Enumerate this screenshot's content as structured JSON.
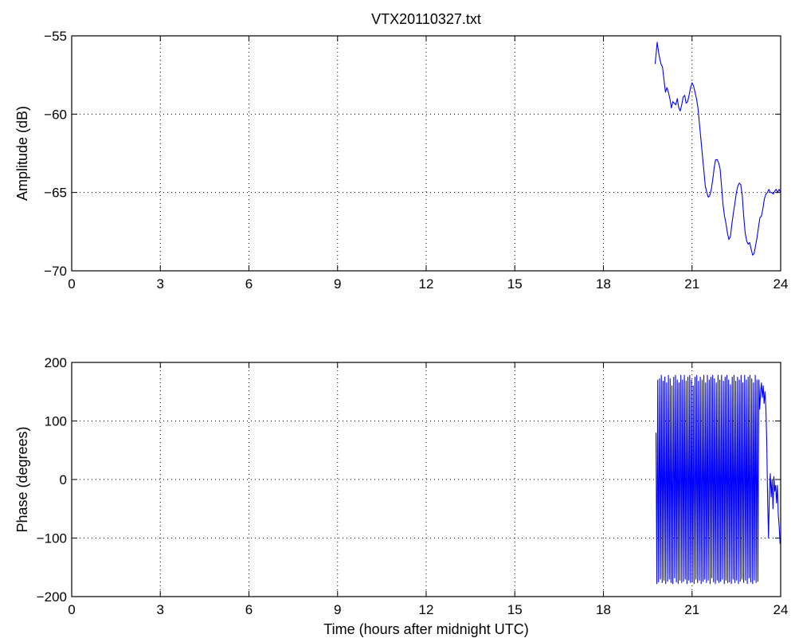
{
  "chart_data": [
    {
      "type": "line",
      "title": "VTX20110327.txt",
      "xlabel": "",
      "ylabel": "Amplitude (dB)",
      "xlim": [
        0,
        24
      ],
      "ylim": [
        -70,
        -55
      ],
      "xticks": [
        "0",
        "3",
        "6",
        "9",
        "12",
        "15",
        "18",
        "21",
        "24"
      ],
      "yticks": [
        "-70",
        "-65",
        "-60",
        "-55"
      ],
      "grid": true,
      "line_color": "#0000ff",
      "series": [
        {
          "x": [
            19.75,
            19.82,
            19.88,
            19.95,
            20.0,
            20.05,
            20.1,
            20.15,
            20.2,
            20.25,
            20.3,
            20.35,
            20.4,
            20.45,
            20.5,
            20.55,
            20.6,
            20.65,
            20.7,
            20.75,
            20.8,
            20.85,
            20.9,
            20.95,
            21.0,
            21.05,
            21.1,
            21.15,
            21.2,
            21.25,
            21.3,
            21.35,
            21.4,
            21.45,
            21.5,
            21.55,
            21.6,
            21.65,
            21.7,
            21.75,
            21.8,
            21.85,
            21.9,
            21.95,
            22.0,
            22.05,
            22.1,
            22.15,
            22.2,
            22.25,
            22.3,
            22.35,
            22.4,
            22.45,
            22.5,
            22.55,
            22.6,
            22.65,
            22.7,
            22.75,
            22.8,
            22.85,
            22.9,
            22.95,
            23.0,
            23.05,
            23.1,
            23.15,
            23.2,
            23.25,
            23.3,
            23.35,
            23.4,
            23.45,
            23.5,
            23.55,
            23.6,
            23.65,
            23.7,
            23.75,
            23.8,
            23.85,
            23.9,
            23.95,
            24.0
          ],
          "y": [
            -56.8,
            -55.4,
            -56.2,
            -56.8,
            -57.0,
            -57.8,
            -58.6,
            -58.3,
            -58.6,
            -59.0,
            -59.6,
            -59.2,
            -59.3,
            -59.4,
            -59.0,
            -59.6,
            -59.8,
            -59.4,
            -58.9,
            -58.8,
            -59.3,
            -59.2,
            -58.8,
            -58.3,
            -58.0,
            -58.2,
            -58.6,
            -59.0,
            -59.6,
            -60.6,
            -61.6,
            -62.6,
            -63.6,
            -64.6,
            -65.0,
            -65.3,
            -65.2,
            -64.8,
            -64.2,
            -63.4,
            -62.9,
            -62.9,
            -63.1,
            -63.5,
            -64.6,
            -65.8,
            -66.5,
            -67.0,
            -67.6,
            -68.0,
            -67.8,
            -67.0,
            -66.3,
            -65.7,
            -65.0,
            -64.6,
            -64.4,
            -64.5,
            -65.2,
            -66.5,
            -67.6,
            -68.1,
            -68.3,
            -68.2,
            -68.6,
            -69.0,
            -68.9,
            -68.4,
            -67.9,
            -67.2,
            -66.6,
            -66.5,
            -66.0,
            -65.4,
            -65.1,
            -65.0,
            -64.8,
            -65.0,
            -65.0,
            -65.1,
            -64.9,
            -64.8,
            -65.0,
            -64.8,
            -65.0
          ]
        }
      ]
    },
    {
      "type": "line",
      "title": "",
      "xlabel": "Time (hours after midnight UTC)",
      "ylabel": "Phase (degrees)",
      "xlim": [
        0,
        24
      ],
      "ylim": [
        -200,
        200
      ],
      "xticks": [
        "0",
        "3",
        "6",
        "9",
        "12",
        "15",
        "18",
        "21",
        "24"
      ],
      "yticks": [
        "-200",
        "-100",
        "0",
        "100",
        "200"
      ],
      "grid": true,
      "line_color": "#0000ff",
      "series": [
        {
          "x": [
            19.78,
            19.81,
            19.84,
            19.87,
            19.9,
            19.93,
            19.96,
            19.99,
            20.02,
            20.05,
            20.08,
            20.11,
            20.14,
            20.17,
            20.2,
            20.23,
            20.26,
            20.29,
            20.32,
            20.35,
            20.38,
            20.41,
            20.44,
            20.47,
            20.5,
            20.53,
            20.56,
            20.59,
            20.62,
            20.65,
            20.68,
            20.71,
            20.74,
            20.77,
            20.8,
            20.83,
            20.86,
            20.89,
            20.92,
            20.95,
            20.98,
            21.01,
            21.04,
            21.07,
            21.1,
            21.13,
            21.16,
            21.19,
            21.22,
            21.25,
            21.28,
            21.31,
            21.34,
            21.37,
            21.4,
            21.43,
            21.46,
            21.49,
            21.52,
            21.55,
            21.58,
            21.61,
            21.64,
            21.67,
            21.7,
            21.73,
            21.76,
            21.79,
            21.82,
            21.85,
            21.88,
            21.91,
            21.94,
            21.97,
            22.0,
            22.03,
            22.06,
            22.09,
            22.12,
            22.15,
            22.18,
            22.21,
            22.24,
            22.27,
            22.3,
            22.33,
            22.36,
            22.39,
            22.42,
            22.45,
            22.48,
            22.51,
            22.54,
            22.57,
            22.6,
            22.63,
            22.66,
            22.69,
            22.72,
            22.75,
            22.78,
            22.81,
            22.84,
            22.87,
            22.9,
            22.93,
            22.96,
            22.99,
            23.02,
            23.05,
            23.08,
            23.11,
            23.14,
            23.17,
            23.2,
            23.23,
            23.26,
            23.29,
            23.32,
            23.35,
            23.38,
            23.41,
            23.44,
            23.47,
            23.5,
            23.53,
            23.56,
            23.59,
            23.62,
            23.65,
            23.68,
            23.71,
            23.74,
            23.77,
            23.8,
            23.83,
            23.86,
            23.89,
            23.92,
            23.95,
            23.98
          ],
          "y": [
            80,
            -178,
            170,
            -175,
            172,
            -170,
            178,
            -176,
            168,
            -172,
            175,
            -178,
            165,
            -174,
            178,
            -170,
            172,
            -176,
            160,
            -178,
            175,
            -168,
            178,
            -175,
            170,
            -178,
            165,
            -172,
            178,
            -176,
            170,
            -174,
            178,
            -170,
            168,
            -178,
            175,
            -172,
            178,
            -176,
            170,
            -175,
            160,
            -178,
            175,
            -170,
            178,
            -176,
            168,
            -172,
            175,
            -178,
            170,
            -174,
            178,
            -170,
            165,
            -176,
            178,
            -172,
            170,
            -178,
            175,
            -168,
            178,
            -175,
            172,
            -178,
            165,
            -172,
            178,
            -176,
            170,
            -174,
            178,
            -170,
            168,
            -178,
            175,
            -172,
            178,
            -176,
            170,
            -175,
            162,
            -178,
            175,
            -170,
            178,
            -176,
            168,
            -172,
            175,
            -178,
            170,
            -174,
            178,
            -170,
            165,
            -176,
            178,
            -172,
            170,
            -178,
            175,
            -168,
            178,
            -175,
            172,
            -178,
            165,
            -172,
            178,
            -176,
            170,
            -174,
            170,
            120,
            150,
            165,
            140,
            160,
            130,
            150,
            120,
            60,
            -40,
            -100,
            -20,
            10,
            -30,
            0,
            -50,
            5,
            -20,
            -10,
            -40,
            -10,
            -60,
            -80,
            -110
          ]
        }
      ]
    }
  ]
}
